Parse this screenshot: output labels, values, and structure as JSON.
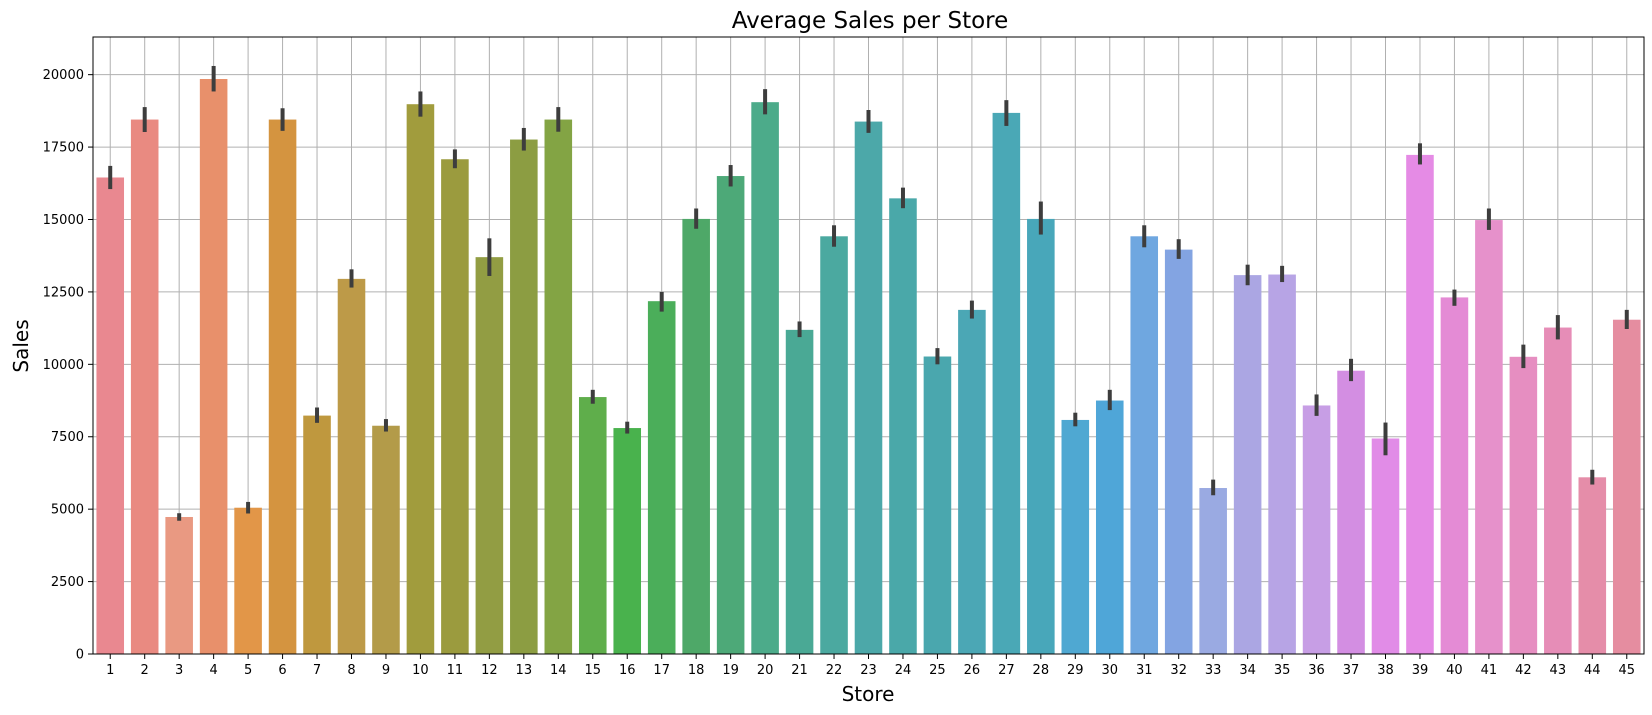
{
  "chart_data": {
    "type": "bar",
    "title": "Average Sales per Store",
    "xlabel": "Store",
    "ylabel": "Sales",
    "ylim": [
      0,
      21300
    ],
    "yticks": [
      0,
      2500,
      5000,
      7500,
      10000,
      12500,
      15000,
      17500,
      20000
    ],
    "grid": true,
    "error_bars": true,
    "categories": [
      "1",
      "2",
      "3",
      "4",
      "5",
      "6",
      "7",
      "8",
      "9",
      "10",
      "11",
      "12",
      "13",
      "14",
      "15",
      "16",
      "17",
      "18",
      "19",
      "20",
      "21",
      "22",
      "23",
      "24",
      "25",
      "26",
      "27",
      "28",
      "29",
      "30",
      "31",
      "32",
      "33",
      "34",
      "35",
      "36",
      "37",
      "38",
      "39",
      "40",
      "41",
      "42",
      "43",
      "44",
      "45"
    ],
    "values": [
      16450,
      18450,
      4730,
      19850,
      5050,
      18450,
      8230,
      12950,
      7880,
      18980,
      17080,
      13700,
      17760,
      18450,
      8870,
      7800,
      12180,
      15020,
      16500,
      19050,
      11190,
      14420,
      18380,
      15730,
      10270,
      11880,
      18680,
      15020,
      8080,
      8750,
      14420,
      13960,
      5730,
      13080,
      13100,
      8580,
      9780,
      7440,
      17230,
      12310,
      14980,
      10260,
      11270,
      6100,
      11540
    ],
    "ci_low": [
      16050,
      18020,
      4600,
      19420,
      4850,
      18060,
      7980,
      12650,
      7680,
      18550,
      16770,
      13050,
      17380,
      18030,
      8640,
      7610,
      11820,
      14680,
      16140,
      18630,
      10940,
      14060,
      17990,
      15390,
      10000,
      11580,
      18230,
      14480,
      7860,
      8420,
      14040,
      13640,
      5480,
      12730,
      12840,
      8220,
      9420,
      6860,
      16900,
      12020,
      14640,
      9870,
      10860,
      5850,
      11220
    ],
    "ci_high": [
      16850,
      18880,
      4860,
      20300,
      5250,
      18840,
      8510,
      13280,
      8110,
      19420,
      17420,
      14350,
      18160,
      18880,
      9120,
      8020,
      12500,
      15380,
      16880,
      19500,
      11480,
      14800,
      18780,
      16100,
      10560,
      12200,
      19120,
      15620,
      8330,
      9120,
      14800,
      14320,
      6020,
      13440,
      13400,
      8960,
      10190,
      7990,
      17630,
      12580,
      15380,
      10680,
      11700,
      6360,
      11880
    ],
    "colors": [
      "#e98890",
      "#e98a81",
      "#e99982",
      "#e8906b",
      "#e29648",
      "#d49440",
      "#bf983e",
      "#bd9a48",
      "#b39b49",
      "#a19c3d",
      "#9b9b3e",
      "#929d43",
      "#8c9d42",
      "#83a444",
      "#5fae4b",
      "#49b24d",
      "#4bae5a",
      "#4ea868",
      "#4da978",
      "#4cab8a",
      "#4aa995",
      "#4ba9a0",
      "#4ca8a9",
      "#4aa8a9",
      "#4aa7ae",
      "#4ba7b5",
      "#4aa8b6",
      "#48a7ba",
      "#4fa8d2",
      "#4fa6d8",
      "#6fa7e0",
      "#83a4e2",
      "#9aaae2",
      "#aba6e3",
      "#b7a4e5",
      "#c79ee5",
      "#d38ee2",
      "#e18ce7",
      "#e58be5",
      "#e48bd5",
      "#e691cb",
      "#e68ec1",
      "#e68db7",
      "#e58da9",
      "#e58da0"
    ]
  }
}
